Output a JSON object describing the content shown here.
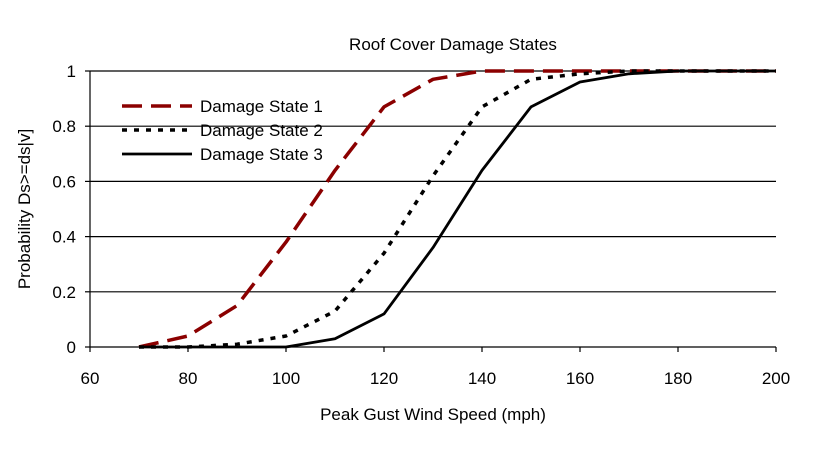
{
  "chart_data": {
    "type": "line",
    "title": "Roof Cover Damage States",
    "xlabel": "Peak Gust Wind Speed (mph)",
    "ylabel": "Probability Ds>=ds|v]",
    "xlim": [
      60,
      200
    ],
    "ylim": [
      0,
      1
    ],
    "x_ticks": [
      60,
      80,
      100,
      120,
      140,
      160,
      180,
      200
    ],
    "y_ticks": [
      0,
      0.2,
      0.4,
      0.6,
      0.8,
      1
    ],
    "x_tick_labels": [
      "60",
      "80",
      "100",
      "120",
      "140",
      "160",
      "180",
      "200"
    ],
    "y_tick_labels": [
      "0",
      "0.2",
      "0.4",
      "0.6",
      "0.8",
      "1"
    ],
    "grid": "horizontal",
    "legend_position": "top-left",
    "x": [
      70,
      80,
      90,
      100,
      110,
      120,
      130,
      140,
      150,
      160,
      170,
      180,
      190,
      200
    ],
    "series": [
      {
        "name": "Damage State 1",
        "color": "#8b0000",
        "style": "dashed",
        "values": [
          0.0,
          0.04,
          0.15,
          0.38,
          0.64,
          0.87,
          0.97,
          1.0,
          1.0,
          1.0,
          1.0,
          1.0,
          1.0,
          1.0
        ]
      },
      {
        "name": "Damage State 2",
        "color": "#000000",
        "style": "dotted",
        "values": [
          0.0,
          0.0,
          0.01,
          0.04,
          0.13,
          0.34,
          0.62,
          0.87,
          0.97,
          0.99,
          1.0,
          1.0,
          1.0,
          1.0
        ]
      },
      {
        "name": "Damage State 3",
        "color": "#000000",
        "style": "solid",
        "values": [
          0.0,
          0.0,
          0.0,
          0.0,
          0.03,
          0.12,
          0.36,
          0.64,
          0.87,
          0.96,
          0.99,
          1.0,
          1.0,
          1.0
        ]
      }
    ]
  }
}
